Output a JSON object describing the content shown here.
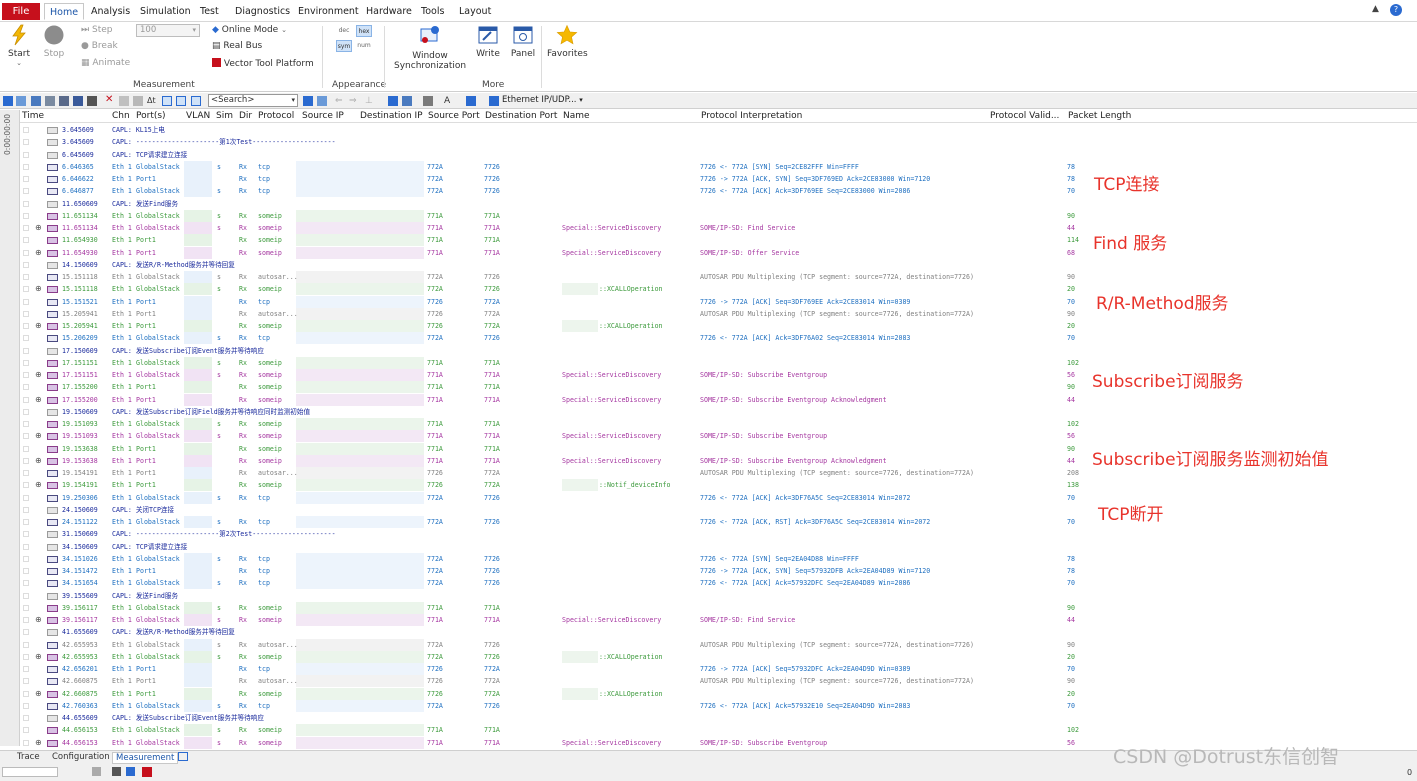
{
  "menu": {
    "file": "File",
    "tabs": [
      "Home",
      "Analysis",
      "Simulation",
      "Test",
      "Diagnostics",
      "Environment",
      "Hardware",
      "Tools",
      "Layout"
    ],
    "active_tab": "Home"
  },
  "ribbon": {
    "start": "Start",
    "stop": "Stop",
    "step": "Step",
    "break": "Break",
    "animate": "Animate",
    "speed_value": "100",
    "online_mode": "Online Mode",
    "real_bus": "Real Bus",
    "vector_tool_platform": "Vector Tool Platform",
    "appearance_btns": [
      "dec",
      "hex",
      "sym",
      "num"
    ],
    "window_sync_line1": "Window",
    "window_sync_line2": "Synchronization",
    "write": "Write",
    "panel": "Panel",
    "favorites": "Favorites",
    "group_measurement": "Measurement",
    "group_appearance": "Appearance",
    "group_more": "More"
  },
  "toolbar": {
    "search_placeholder": "<Search>",
    "protocol_filter": "Ethernet IP/UDP..."
  },
  "sidebar_time": "0:00:00:00",
  "columns": {
    "time": "Time",
    "chn": "Chn",
    "ports": "Port(s)",
    "vlan": "VLAN",
    "sim": "Sim",
    "dir": "Dir",
    "protocol": "Protocol",
    "source_ip": "Source IP",
    "destination_ip": "Destination IP",
    "source_port": "Source Port",
    "destination_port": "Destination Port",
    "name": "Name",
    "protocol_interpretation": "Protocol Interpretation",
    "protocol_valid": "Protocol Valid...",
    "packet_length": "Packet Length"
  },
  "rows": [
    {
      "t": "3.645609",
      "k": "capl",
      "msg": "CAPL: KL15上电"
    },
    {
      "t": "3.645609",
      "k": "capl",
      "msg": "CAPL: ---------------------第1次Test---------------------"
    },
    {
      "t": "6.645609",
      "k": "capl",
      "msg": "CAPL: TCP请求建立连接"
    },
    {
      "t": "6.646365",
      "k": "blue",
      "e": "",
      "ch": "Eth 1",
      "port": "GlobalStack",
      "sim": "s",
      "dir": "Rx",
      "proto": "tcp",
      "sp": "772A",
      "dp": "7726",
      "name": "",
      "interp": "7726 <- 772A [SYN] Seq=2CE82FFF Win=FFFF",
      "len": "78"
    },
    {
      "t": "6.646622",
      "k": "blue",
      "e": "",
      "ch": "Eth 1",
      "port": "Port1",
      "sim": "",
      "dir": "Rx",
      "proto": "tcp",
      "sp": "772A",
      "dp": "7726",
      "name": "",
      "interp": "7726 -> 772A [ACK, SYN] Seq=3DF769ED Ack=2CE83000 Win=7120",
      "len": "78"
    },
    {
      "t": "6.646877",
      "k": "blue",
      "e": "",
      "ch": "Eth 1",
      "port": "GlobalStack",
      "sim": "s",
      "dir": "Rx",
      "proto": "tcp",
      "sp": "772A",
      "dp": "7726",
      "name": "",
      "interp": "7726 <- 772A [ACK] Ack=3DF769EE Seq=2CE83000 Win=2086",
      "len": "70"
    },
    {
      "t": "11.650609",
      "k": "capl",
      "msg": "CAPL: 发送Find服务"
    },
    {
      "t": "11.651134",
      "k": "grn",
      "e": "",
      "ch": "Eth 1",
      "port": "GlobalStack",
      "sim": "s",
      "dir": "Rx",
      "proto": "someip",
      "sp": "771A",
      "dp": "771A",
      "name": "",
      "interp": "",
      "len": "90"
    },
    {
      "t": "11.651134",
      "k": "mag",
      "e": "⊕",
      "ch": "Eth 1",
      "port": "GlobalStack",
      "sim": "s",
      "dir": "Rx",
      "proto": "someip",
      "sp": "771A",
      "dp": "771A",
      "name": "Special::ServiceDiscovery",
      "interp": "SOME/IP-SD: Find Service",
      "len": "44"
    },
    {
      "t": "11.654930",
      "k": "grn",
      "e": "",
      "ch": "Eth 1",
      "port": "Port1",
      "sim": "",
      "dir": "Rx",
      "proto": "someip",
      "sp": "771A",
      "dp": "771A",
      "name": "",
      "interp": "",
      "len": "114"
    },
    {
      "t": "11.654930",
      "k": "mag",
      "e": "⊕",
      "ch": "Eth 1",
      "port": "Port1",
      "sim": "",
      "dir": "Rx",
      "proto": "someip",
      "sp": "771A",
      "dp": "771A",
      "name": "Special::ServiceDiscovery",
      "interp": "SOME/IP-SD: Offer Service",
      "len": "68"
    },
    {
      "t": "14.150609",
      "k": "capl",
      "msg": "CAPL: 发送R/R-Method服务并等待回复"
    },
    {
      "t": "15.151118",
      "k": "grey",
      "e": "",
      "ch": "Eth 1",
      "port": "GlobalStack",
      "sim": "s",
      "dir": "Rx",
      "proto": "autosar...",
      "sp": "772A",
      "dp": "7726",
      "name": "",
      "interp": "AUTOSAR PDU Multiplexing (TCP segment: source=772A, destination=7726)",
      "len": "90"
    },
    {
      "t": "15.151118",
      "k": "grn",
      "e": "⊕",
      "ch": "Eth 1",
      "port": "GlobalStack",
      "sim": "s",
      "dir": "Rx",
      "proto": "someip",
      "sp": "772A",
      "dp": "7726",
      "name": "::XCALLOperation",
      "interp": "",
      "len": "20"
    },
    {
      "t": "15.151521",
      "k": "blue",
      "e": "",
      "ch": "Eth 1",
      "port": "Port1",
      "sim": "",
      "dir": "Rx",
      "proto": "tcp",
      "sp": "7726",
      "dp": "772A",
      "name": "",
      "interp": "7726 -> 772A [ACK] Seq=3DF769EE Ack=2CE83014 Win=0389",
      "len": "70"
    },
    {
      "t": "15.205941",
      "k": "grey",
      "e": "",
      "ch": "Eth 1",
      "port": "Port1",
      "sim": "",
      "dir": "Rx",
      "proto": "autosar...",
      "sp": "7726",
      "dp": "772A",
      "name": "",
      "interp": "AUTOSAR PDU Multiplexing (TCP segment: source=7726, destination=772A)",
      "len": "90"
    },
    {
      "t": "15.205941",
      "k": "grn",
      "e": "⊕",
      "ch": "Eth 1",
      "port": "Port1",
      "sim": "",
      "dir": "Rx",
      "proto": "someip",
      "sp": "7726",
      "dp": "772A",
      "name": "::XCALLOperation",
      "interp": "",
      "len": "20"
    },
    {
      "t": "15.206209",
      "k": "blue",
      "e": "",
      "ch": "Eth 1",
      "port": "GlobalStack",
      "sim": "s",
      "dir": "Rx",
      "proto": "tcp",
      "sp": "772A",
      "dp": "7726",
      "name": "",
      "interp": "7726 <- 772A [ACK] Ack=3DF76A02 Seq=2CE83014 Win=2083",
      "len": "70"
    },
    {
      "t": "17.150609",
      "k": "capl",
      "msg": "CAPL: 发送Subscribe订阅Event服务并等待响应"
    },
    {
      "t": "17.151151",
      "k": "grn",
      "e": "",
      "ch": "Eth 1",
      "port": "GlobalStack",
      "sim": "s",
      "dir": "Rx",
      "proto": "someip",
      "sp": "771A",
      "dp": "771A",
      "name": "",
      "interp": "",
      "len": "102"
    },
    {
      "t": "17.151151",
      "k": "mag",
      "e": "⊕",
      "ch": "Eth 1",
      "port": "GlobalStack",
      "sim": "s",
      "dir": "Rx",
      "proto": "someip",
      "sp": "771A",
      "dp": "771A",
      "name": "Special::ServiceDiscovery",
      "interp": "SOME/IP-SD: Subscribe Eventgroup",
      "len": "56"
    },
    {
      "t": "17.155200",
      "k": "grn",
      "e": "",
      "ch": "Eth 1",
      "port": "Port1",
      "sim": "",
      "dir": "Rx",
      "proto": "someip",
      "sp": "771A",
      "dp": "771A",
      "name": "",
      "interp": "",
      "len": "90"
    },
    {
      "t": "17.155200",
      "k": "mag",
      "e": "⊕",
      "ch": "Eth 1",
      "port": "Port1",
      "sim": "",
      "dir": "Rx",
      "proto": "someip",
      "sp": "771A",
      "dp": "771A",
      "name": "Special::ServiceDiscovery",
      "interp": "SOME/IP-SD: Subscribe Eventgroup Acknowledgment",
      "len": "44"
    },
    {
      "t": "19.150609",
      "k": "capl",
      "msg": "CAPL: 发送Subscribe订阅Field服务并等待响应同时监测初始值"
    },
    {
      "t": "19.151093",
      "k": "grn",
      "e": "",
      "ch": "Eth 1",
      "port": "GlobalStack",
      "sim": "s",
      "dir": "Rx",
      "proto": "someip",
      "sp": "771A",
      "dp": "771A",
      "name": "",
      "interp": "",
      "len": "102"
    },
    {
      "t": "19.151093",
      "k": "mag",
      "e": "⊕",
      "ch": "Eth 1",
      "port": "GlobalStack",
      "sim": "s",
      "dir": "Rx",
      "proto": "someip",
      "sp": "771A",
      "dp": "771A",
      "name": "Special::ServiceDiscovery",
      "interp": "SOME/IP-SD: Subscribe Eventgroup",
      "len": "56"
    },
    {
      "t": "19.153638",
      "k": "grn",
      "e": "",
      "ch": "Eth 1",
      "port": "Port1",
      "sim": "",
      "dir": "Rx",
      "proto": "someip",
      "sp": "771A",
      "dp": "771A",
      "name": "",
      "interp": "",
      "len": "90"
    },
    {
      "t": "19.153638",
      "k": "mag",
      "e": "⊕",
      "ch": "Eth 1",
      "port": "Port1",
      "sim": "",
      "dir": "Rx",
      "proto": "someip",
      "sp": "771A",
      "dp": "771A",
      "name": "Special::ServiceDiscovery",
      "interp": "SOME/IP-SD: Subscribe Eventgroup Acknowledgment",
      "len": "44"
    },
    {
      "t": "19.154191",
      "k": "grey",
      "e": "",
      "ch": "Eth 1",
      "port": "Port1",
      "sim": "",
      "dir": "Rx",
      "proto": "autosar...",
      "sp": "7726",
      "dp": "772A",
      "name": "",
      "interp": "AUTOSAR PDU Multiplexing (TCP segment: source=7726, destination=772A)",
      "len": "208"
    },
    {
      "t": "19.154191",
      "k": "grn",
      "e": "⊕",
      "ch": "Eth 1",
      "port": "Port1",
      "sim": "",
      "dir": "Rx",
      "proto": "someip",
      "sp": "7726",
      "dp": "772A",
      "name": "::Notif_deviceInfo",
      "interp": "",
      "len": "138"
    },
    {
      "t": "19.250306",
      "k": "blue",
      "e": "",
      "ch": "Eth 1",
      "port": "GlobalStack",
      "sim": "s",
      "dir": "Rx",
      "proto": "tcp",
      "sp": "772A",
      "dp": "7726",
      "name": "",
      "interp": "7726 <- 772A [ACK] Ack=3DF76A5C Seq=2CE83014 Win=2072",
      "len": "70"
    },
    {
      "t": "24.150609",
      "k": "capl",
      "msg": "CAPL: 关闭TCP连接"
    },
    {
      "t": "24.151122",
      "k": "blue",
      "e": "",
      "ch": "Eth 1",
      "port": "GlobalStack",
      "sim": "s",
      "dir": "Rx",
      "proto": "tcp",
      "sp": "772A",
      "dp": "7726",
      "name": "",
      "interp": "7726 <- 772A [ACK, RST] Ack=3DF76A5C Seq=2CE83014 Win=2072",
      "len": "70"
    },
    {
      "t": "31.150609",
      "k": "capl",
      "msg": "CAPL: ---------------------第2次Test---------------------"
    },
    {
      "t": "34.150609",
      "k": "capl",
      "msg": "CAPL: TCP请求建立连接"
    },
    {
      "t": "34.151026",
      "k": "blue",
      "e": "",
      "ch": "Eth 1",
      "port": "GlobalStack",
      "sim": "s",
      "dir": "Rx",
      "proto": "tcp",
      "sp": "772A",
      "dp": "7726",
      "name": "",
      "interp": "7726 <- 772A [SYN] Seq=2EA04D88 Win=FFFF",
      "len": "78"
    },
    {
      "t": "34.151472",
      "k": "blue",
      "e": "",
      "ch": "Eth 1",
      "port": "Port1",
      "sim": "",
      "dir": "Rx",
      "proto": "tcp",
      "sp": "772A",
      "dp": "7726",
      "name": "",
      "interp": "7726 -> 772A [ACK, SYN] Seq=57932DFB Ack=2EA04D89 Win=7120",
      "len": "78"
    },
    {
      "t": "34.151654",
      "k": "blue",
      "e": "",
      "ch": "Eth 1",
      "port": "GlobalStack",
      "sim": "s",
      "dir": "Rx",
      "proto": "tcp",
      "sp": "772A",
      "dp": "7726",
      "name": "",
      "interp": "7726 <- 772A [ACK] Ack=57932DFC Seq=2EA04D89 Win=2086",
      "len": "70"
    },
    {
      "t": "39.155609",
      "k": "capl",
      "msg": "CAPL: 发送Find服务"
    },
    {
      "t": "39.156117",
      "k": "grn",
      "e": "",
      "ch": "Eth 1",
      "port": "GlobalStack",
      "sim": "s",
      "dir": "Rx",
      "proto": "someip",
      "sp": "771A",
      "dp": "771A",
      "name": "",
      "interp": "",
      "len": "90"
    },
    {
      "t": "39.156117",
      "k": "mag",
      "e": "⊕",
      "ch": "Eth 1",
      "port": "GlobalStack",
      "sim": "s",
      "dir": "Rx",
      "proto": "someip",
      "sp": "771A",
      "dp": "771A",
      "name": "Special::ServiceDiscovery",
      "interp": "SOME/IP-SD: Find Service",
      "len": "44"
    },
    {
      "t": "41.655609",
      "k": "capl",
      "msg": "CAPL: 发送R/R-Method服务并等待回复"
    },
    {
      "t": "42.655953",
      "k": "grey",
      "e": "",
      "ch": "Eth 1",
      "port": "GlobalStack",
      "sim": "s",
      "dir": "Rx",
      "proto": "autosar...",
      "sp": "772A",
      "dp": "7726",
      "name": "",
      "interp": "AUTOSAR PDU Multiplexing (TCP segment: source=772A, destination=7726)",
      "len": "90"
    },
    {
      "t": "42.655953",
      "k": "grn",
      "e": "⊕",
      "ch": "Eth 1",
      "port": "GlobalStack",
      "sim": "s",
      "dir": "Rx",
      "proto": "someip",
      "sp": "772A",
      "dp": "7726",
      "name": "::XCALLOperation",
      "interp": "",
      "len": "20"
    },
    {
      "t": "42.656201",
      "k": "blue",
      "e": "",
      "ch": "Eth 1",
      "port": "Port1",
      "sim": "",
      "dir": "Rx",
      "proto": "tcp",
      "sp": "7726",
      "dp": "772A",
      "name": "",
      "interp": "7726 -> 772A [ACK] Seq=57932DFC Ack=2EA04D9D Win=0389",
      "len": "70"
    },
    {
      "t": "42.660875",
      "k": "grey",
      "e": "",
      "ch": "Eth 1",
      "port": "Port1",
      "sim": "",
      "dir": "Rx",
      "proto": "autosar...",
      "sp": "7726",
      "dp": "772A",
      "name": "",
      "interp": "AUTOSAR PDU Multiplexing (TCP segment: source=7726, destination=772A)",
      "len": "90"
    },
    {
      "t": "42.660875",
      "k": "grn",
      "e": "⊕",
      "ch": "Eth 1",
      "port": "Port1",
      "sim": "",
      "dir": "Rx",
      "proto": "someip",
      "sp": "7726",
      "dp": "772A",
      "name": "::XCALLOperation",
      "interp": "",
      "len": "20"
    },
    {
      "t": "42.760363",
      "k": "blue",
      "e": "",
      "ch": "Eth 1",
      "port": "GlobalStack",
      "sim": "s",
      "dir": "Rx",
      "proto": "tcp",
      "sp": "772A",
      "dp": "7726",
      "name": "",
      "interp": "7726 <- 772A [ACK] Ack=57932E10 Seq=2EA04D9D Win=2083",
      "len": "70"
    },
    {
      "t": "44.655609",
      "k": "capl",
      "msg": "CAPL: 发送Subscribe订阅Event服务并等待响应"
    },
    {
      "t": "44.656153",
      "k": "grn",
      "e": "",
      "ch": "Eth 1",
      "port": "GlobalStack",
      "sim": "s",
      "dir": "Rx",
      "proto": "someip",
      "sp": "771A",
      "dp": "771A",
      "name": "",
      "interp": "",
      "len": "102"
    },
    {
      "t": "44.656153",
      "k": "mag",
      "e": "⊕",
      "ch": "Eth 1",
      "port": "GlobalStack",
      "sim": "s",
      "dir": "Rx",
      "proto": "someip",
      "sp": "771A",
      "dp": "771A",
      "name": "Special::ServiceDiscovery",
      "interp": "SOME/IP-SD: Subscribe Eventgroup",
      "len": "56"
    }
  ],
  "annotations": [
    "TCP连接",
    "Find 服务",
    "R/R-Method服务",
    "Subscribe订阅服务",
    "Subscribe订阅服务监测初始值",
    "TCP断开"
  ],
  "status_tabs": [
    "Trace",
    "Configuration",
    "Measurement"
  ],
  "active_status_tab": "Measurement",
  "status_right": "0",
  "watermark": "CSDN @Dotrust东信创智",
  "colors": {
    "file_red": "#c6101c",
    "capl_text": "#1a2a9c",
    "tcp_text": "#1e6fc0",
    "someip_text": "#3c9a3c",
    "sd_text": "#a536a0",
    "autosar_text": "#808080",
    "annotation_red": "#e8332b"
  }
}
